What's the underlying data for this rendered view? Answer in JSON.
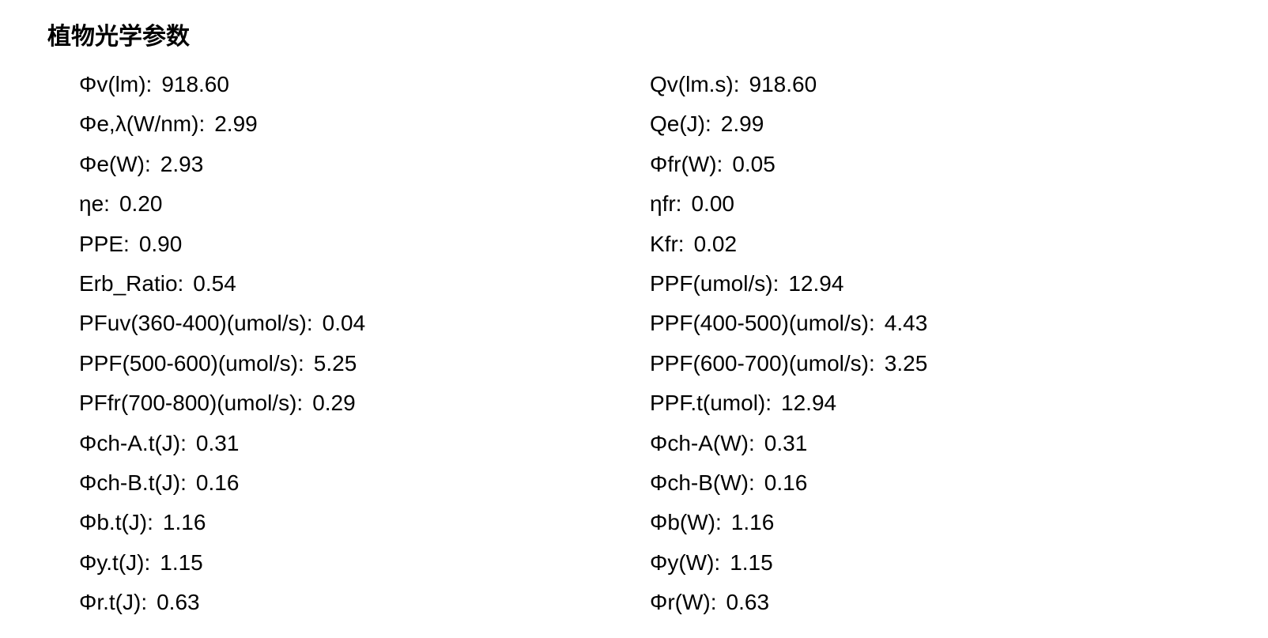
{
  "title": "植物光学参数",
  "left_column": [
    {
      "label": "Φv(lm):",
      "value": "918.60"
    },
    {
      "label": "Φe,λ(W/nm):",
      "value": "2.99"
    },
    {
      "label": "Φe(W):",
      "value": "2.93"
    },
    {
      "label": "ηe:",
      "value": "0.20"
    },
    {
      "label": "PPE:",
      "value": "0.90"
    },
    {
      "label": "Erb_Ratio:",
      "value": "0.54"
    },
    {
      "label": "PFuv(360-400)(umol/s):",
      "value": "0.04"
    },
    {
      "label": "PPF(500-600)(umol/s):",
      "value": "5.25"
    },
    {
      "label": "PFfr(700-800)(umol/s):",
      "value": "0.29"
    },
    {
      "label": "Φch-A.t(J):",
      "value": "0.31"
    },
    {
      "label": "Φch-B.t(J):",
      "value": "0.16"
    },
    {
      "label": "Φb.t(J):",
      "value": "1.16"
    },
    {
      "label": "Φy.t(J):",
      "value": "1.15"
    },
    {
      "label": "Φr.t(J):",
      "value": "0.63"
    }
  ],
  "right_column": [
    {
      "label": "Qv(lm.s):",
      "value": "918.60"
    },
    {
      "label": "Qe(J):",
      "value": "2.99"
    },
    {
      "label": "Φfr(W):",
      "value": "0.05"
    },
    {
      "label": "ηfr:",
      "value": "0.00"
    },
    {
      "label": "Kfr:",
      "value": "0.02"
    },
    {
      "label": "PPF(umol/s):",
      "value": "12.94"
    },
    {
      "label": "PPF(400-500)(umol/s):",
      "value": "4.43"
    },
    {
      "label": "PPF(600-700)(umol/s):",
      "value": "3.25"
    },
    {
      "label": "PPF.t(umol):",
      "value": "12.94"
    },
    {
      "label": "Φch-A(W):",
      "value": "0.31"
    },
    {
      "label": "Φch-B(W):",
      "value": "0.16"
    },
    {
      "label": "Φb(W):",
      "value": "1.16"
    },
    {
      "label": "Φy(W):",
      "value": "1.15"
    },
    {
      "label": "Φr(W):",
      "value": "0.63"
    }
  ],
  "styling": {
    "background_color": "#ffffff",
    "text_color": "#000000",
    "title_fontsize": 30,
    "body_fontsize": 28,
    "font_family": "Microsoft YaHei"
  }
}
